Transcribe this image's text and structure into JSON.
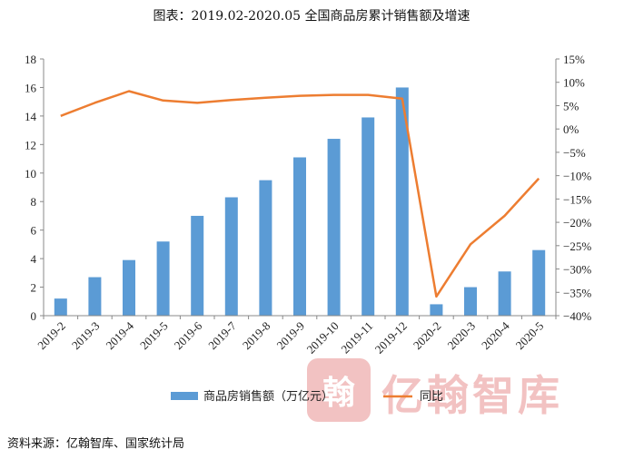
{
  "title": "图表：2019.02-2020.05 全国商品房累计销售额及增速",
  "source": "资料来源：亿翰智库、国家统计局",
  "watermark": {
    "text": "亿翰智库",
    "seal": "翰"
  },
  "colors": {
    "bar": "#5b9bd5",
    "line": "#ed7d31",
    "watermark": "#f2c2c2"
  },
  "chart_data": {
    "type": "bar+line",
    "categories": [
      "2019-2",
      "2019-3",
      "2019-4",
      "2019-5",
      "2019-6",
      "2019-7",
      "2019-8",
      "2019-9",
      "2019-10",
      "2019-11",
      "2019-12",
      "2020-2",
      "2020-3",
      "2020-4",
      "2020-5"
    ],
    "series": [
      {
        "name": "商品房销售额（万亿元）",
        "type": "bar",
        "axis": "left",
        "values": [
          1.2,
          2.7,
          3.9,
          5.2,
          7.0,
          8.3,
          9.5,
          11.1,
          12.4,
          13.9,
          16.0,
          0.8,
          2.0,
          3.1,
          4.6
        ]
      },
      {
        "name": "同比",
        "type": "line",
        "axis": "right",
        "values": [
          2.8,
          5.6,
          8.1,
          6.1,
          5.6,
          6.2,
          6.7,
          7.1,
          7.3,
          7.3,
          6.5,
          -35.9,
          -24.7,
          -18.6,
          -10.6
        ]
      }
    ],
    "y_left": {
      "min": 0,
      "max": 18,
      "ticks": [
        0,
        2,
        4,
        6,
        8,
        10,
        12,
        14,
        16,
        18
      ]
    },
    "y_right": {
      "min": -40,
      "max": 15,
      "ticks": [
        15,
        10,
        5,
        0,
        -5,
        -10,
        -15,
        -20,
        -25,
        -30,
        -35,
        -40
      ],
      "tick_labels": [
        "15%",
        "10%",
        "5%",
        "0%",
        "−5%",
        "−10%",
        "−15%",
        "−20%",
        "−25%",
        "−30%",
        "−35%",
        "−40%"
      ]
    },
    "legend": [
      {
        "label": "商品房销售额（万亿元）",
        "kind": "bar"
      },
      {
        "label": "同比",
        "kind": "line"
      }
    ],
    "legend_position": "bottom",
    "grid": false
  }
}
